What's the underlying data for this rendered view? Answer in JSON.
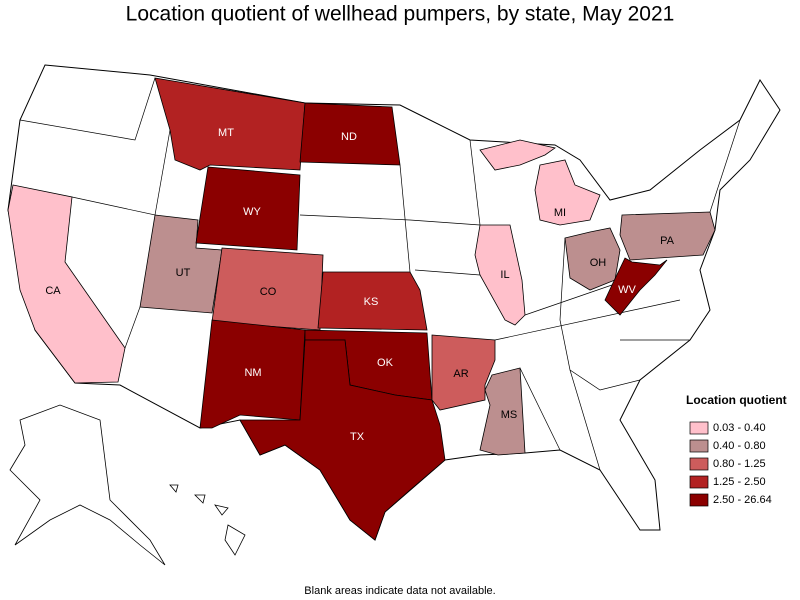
{
  "title": "Location quotient of wellhead pumpers, by state, May 2021",
  "legend": {
    "title": "Location quotient",
    "entries": [
      {
        "label": "0.03 - 0.40",
        "color": "#ffc0cb"
      },
      {
        "label": "0.40 - 0.80",
        "color": "#bc8f8f"
      },
      {
        "label": "0.80 - 1.25",
        "color": "#cd5c5c"
      },
      {
        "label": "1.25 - 2.50",
        "color": "#b22222"
      },
      {
        "label": "2.50 - 26.64",
        "color": "#8b0000"
      }
    ]
  },
  "states": [
    {
      "label": "CA",
      "class": 0
    },
    {
      "label": "UT",
      "class": 1
    },
    {
      "label": "CO",
      "class": 2
    },
    {
      "label": "MT",
      "class": 3
    },
    {
      "label": "ND",
      "class": 4
    },
    {
      "label": "WY",
      "class": 4
    },
    {
      "label": "KS",
      "class": 3
    },
    {
      "label": "NM",
      "class": 4
    },
    {
      "label": "OK",
      "class": 4
    },
    {
      "label": "TX",
      "class": 4
    },
    {
      "label": "AR",
      "class": 2
    },
    {
      "label": "MS",
      "class": 1
    },
    {
      "label": "IL",
      "class": 0
    },
    {
      "label": "MI",
      "class": 0
    },
    {
      "label": "OH",
      "class": 1
    },
    {
      "label": "PA",
      "class": 1
    },
    {
      "label": "WV",
      "class": 4
    }
  ],
  "footnote": "Blank areas indicate data not available."
}
